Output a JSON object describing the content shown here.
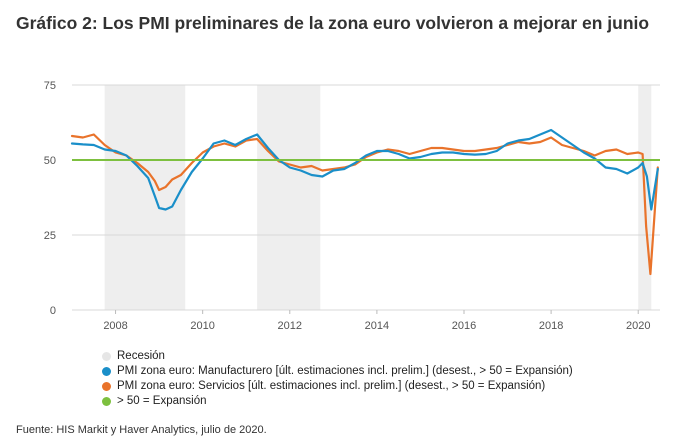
{
  "title": "Gráfico 2: Los PMI preliminares de la zona euro volvieron a mejorar en junio",
  "source": "Fuente: HIS Markit y Haver Analytics, julio de 2020.",
  "chart_data": {
    "type": "line",
    "ylim": [
      0,
      75
    ],
    "yticks": [
      "0",
      "25",
      "50",
      "75"
    ],
    "xlim": [
      2007.0,
      2020.5
    ],
    "xticks": [
      "2008",
      "2010",
      "2012",
      "2014",
      "2016",
      "2018",
      "2020"
    ],
    "grid": true,
    "legend_position": "bottom",
    "threshold": 50,
    "recessions": [
      [
        2007.75,
        2009.6
      ],
      [
        2011.25,
        2012.7
      ],
      [
        2020.0,
        2020.3
      ]
    ],
    "legend": {
      "recession": "Recesión",
      "manufacturing": "PMI zona euro: Manufacturero [últ. estimaciones incl. prelim.] (desest., > 50 = Expansión)",
      "services": "PMI zona euro: Servicios [últ. estimaciones incl. prelim.] (desest., > 50 = Expansión)",
      "threshold": "> 50 = Expansión"
    },
    "colors": {
      "manufacturing": "#1a8fc9",
      "services": "#e9732b",
      "threshold": "#7dc03f",
      "recession": "#eeeeee",
      "grid": "#d8d8d8"
    },
    "series": [
      {
        "key": "manufacturing",
        "x": [
          2007.0,
          2007.25,
          2007.5,
          2007.75,
          2008.0,
          2008.25,
          2008.5,
          2008.75,
          2008.9,
          2009.0,
          2009.15,
          2009.3,
          2009.5,
          2009.75,
          2010.0,
          2010.25,
          2010.5,
          2010.75,
          2011.0,
          2011.25,
          2011.5,
          2011.75,
          2012.0,
          2012.25,
          2012.5,
          2012.75,
          2013.0,
          2013.25,
          2013.5,
          2013.75,
          2014.0,
          2014.25,
          2014.5,
          2014.75,
          2015.0,
          2015.25,
          2015.5,
          2015.75,
          2016.0,
          2016.25,
          2016.5,
          2016.75,
          2017.0,
          2017.25,
          2017.5,
          2017.75,
          2018.0,
          2018.25,
          2018.5,
          2018.75,
          2019.0,
          2019.25,
          2019.5,
          2019.75,
          2020.0,
          2020.1,
          2020.2,
          2020.3,
          2020.45
        ],
        "values": [
          55.5,
          55.2,
          55.0,
          53.5,
          53.0,
          51.5,
          48.0,
          44.0,
          38.0,
          34.0,
          33.5,
          34.5,
          40.0,
          46.0,
          50.5,
          55.5,
          56.5,
          55.0,
          57.0,
          58.5,
          54.0,
          50.0,
          47.5,
          46.5,
          45.0,
          44.5,
          46.5,
          47.0,
          49.0,
          51.5,
          53.0,
          53.0,
          52.0,
          50.5,
          51.0,
          52.0,
          52.5,
          52.5,
          52.0,
          51.8,
          52.0,
          53.0,
          55.5,
          56.5,
          57.0,
          58.5,
          60.0,
          57.5,
          55.0,
          52.5,
          50.5,
          47.5,
          47.0,
          45.5,
          47.5,
          49.0,
          44.5,
          33.5,
          47.0
        ]
      },
      {
        "key": "services",
        "x": [
          2007.0,
          2007.25,
          2007.5,
          2007.75,
          2008.0,
          2008.25,
          2008.5,
          2008.75,
          2008.9,
          2009.0,
          2009.15,
          2009.3,
          2009.5,
          2009.75,
          2010.0,
          2010.25,
          2010.5,
          2010.75,
          2011.0,
          2011.25,
          2011.5,
          2011.75,
          2012.0,
          2012.25,
          2012.5,
          2012.75,
          2013.0,
          2013.25,
          2013.5,
          2013.75,
          2014.0,
          2014.25,
          2014.5,
          2014.75,
          2015.0,
          2015.25,
          2015.5,
          2015.75,
          2016.0,
          2016.25,
          2016.5,
          2016.75,
          2017.0,
          2017.25,
          2017.5,
          2017.75,
          2018.0,
          2018.25,
          2018.5,
          2018.75,
          2019.0,
          2019.25,
          2019.5,
          2019.75,
          2020.0,
          2020.1,
          2020.18,
          2020.28,
          2020.45
        ],
        "values": [
          58.0,
          57.5,
          58.5,
          55.0,
          52.5,
          51.5,
          49.0,
          46.0,
          43.0,
          40.0,
          41.0,
          43.5,
          45.0,
          49.0,
          52.5,
          54.5,
          55.5,
          54.5,
          56.5,
          57.0,
          53.0,
          49.5,
          48.5,
          47.5,
          48.0,
          46.5,
          47.0,
          47.5,
          48.5,
          51.0,
          52.5,
          53.5,
          53.0,
          52.0,
          53.0,
          54.0,
          54.0,
          53.5,
          53.0,
          53.0,
          53.5,
          54.0,
          55.0,
          56.0,
          55.5,
          56.0,
          57.5,
          55.0,
          54.0,
          53.0,
          51.5,
          53.0,
          53.5,
          52.0,
          52.5,
          52.0,
          28.0,
          12.0,
          47.5
        ]
      }
    ]
  }
}
